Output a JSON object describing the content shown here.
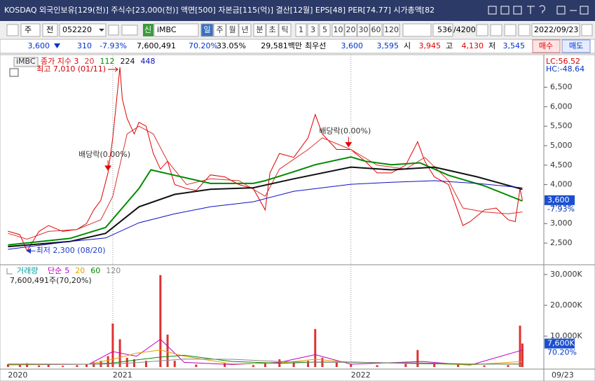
{
  "header": {
    "title": "KOSDAQ 외국인보유[129(천)] 주식수[23,000(천)] 액면[500] 자본금[115(억)] 결산[12월] EPS[48] PER[74.77] 시가총액[82"
  },
  "toolbar": {
    "market": "주",
    "scope": "전",
    "code": "052220",
    "badge": "신",
    "name": "iMBC",
    "periods": [
      "일",
      "주",
      "월",
      "년"
    ],
    "units": [
      "분",
      "초",
      "틱"
    ],
    "intervals": [
      "1",
      "3",
      "5",
      "10",
      "20",
      "30",
      "60",
      "120"
    ],
    "count": "536",
    "max_count": "/4200",
    "date": "2022/09/23"
  },
  "quote": {
    "price": "3,600",
    "change": "310",
    "change_rate": "-7.93%",
    "volume": "7,600,491",
    "volume_rate": "70.20%",
    "turnover": "33.05%",
    "amount": "29,581백만",
    "best_label": "최우선",
    "ask": "3,600",
    "bid": "3,595",
    "open_label": "시",
    "open": "3,945",
    "high_label": "고",
    "high": "4,130",
    "low_label": "저",
    "low": "3,545",
    "buy": "매수",
    "sell": "매도"
  },
  "chart_data": [
    {
      "type": "line",
      "legend_title": "iMBC",
      "lc_label": "LC:56.52",
      "hc_label": "HC:-48.64",
      "last": {
        "value": 3600,
        "label": "3,600"
      },
      "last_change": "-7.93%",
      "x": [
        2020.56,
        2020.61,
        2020.64,
        2020.69,
        2020.73,
        2020.79,
        2020.85,
        2020.89,
        2020.92,
        2020.95,
        2020.98,
        2021.0,
        2021.03,
        2021.04,
        2021.06,
        2021.09,
        2021.11,
        2021.14,
        2021.17,
        2021.2,
        2021.23,
        2021.26,
        2021.31,
        2021.35,
        2021.41,
        2021.47,
        2021.53,
        2021.59,
        2021.64,
        2021.66,
        2021.7,
        2021.76,
        2021.82,
        2021.85,
        2021.88,
        2021.94,
        2022.0,
        2022.06,
        2022.11,
        2022.17,
        2022.23,
        2022.28,
        2022.31,
        2022.35,
        2022.41,
        2022.45,
        2022.47,
        2022.5,
        2022.56,
        2022.61,
        2022.66,
        2022.69,
        2022.71,
        2022.72
      ],
      "series": [
        {
          "name": "종가 지수 3",
          "color": "#e00000",
          "values": [
            2805,
            2715,
            2300,
            2800,
            2950,
            2800,
            2850,
            3000,
            3350,
            3600,
            4300,
            5200,
            7010,
            6200,
            5700,
            5300,
            5600,
            5500,
            4800,
            4400,
            4600,
            4000,
            3900,
            3850,
            4250,
            4200,
            4000,
            3900,
            3350,
            4300,
            4800,
            4700,
            5200,
            5800,
            5300,
            4900,
            4900,
            4600,
            4300,
            4300,
            4500,
            5100,
            4600,
            4200,
            4000,
            3300,
            2950,
            3050,
            3350,
            3400,
            3100,
            3050,
            3900,
            3600
          ]
        },
        {
          "name": "20",
          "color": "#d83030",
          "x": [
            2020.56,
            2020.64,
            2020.73,
            2020.85,
            2020.95,
            2021.0,
            2021.06,
            2021.11,
            2021.17,
            2021.23,
            2021.31,
            2021.41,
            2021.53,
            2021.64,
            2021.7,
            2021.82,
            2021.88,
            2022.0,
            2022.11,
            2022.23,
            2022.31,
            2022.41,
            2022.47,
            2022.56,
            2022.66,
            2022.72
          ],
          "values": [
            2750,
            2600,
            2800,
            2850,
            3100,
            3700,
            5300,
            5500,
            5300,
            4600,
            4000,
            4150,
            4100,
            3700,
            4400,
            4900,
            5200,
            4900,
            4500,
            4400,
            4700,
            4100,
            3400,
            3300,
            3250,
            3300
          ]
        },
        {
          "name": "112",
          "color": "#008a00",
          "width": 2,
          "x": [
            2020.56,
            2020.82,
            2020.97,
            2021.11,
            2021.16,
            2021.26,
            2021.41,
            2021.59,
            2021.64,
            2021.76,
            2021.85,
            2022.0,
            2022.06,
            2022.17,
            2022.29,
            2022.41,
            2022.56,
            2022.72
          ],
          "values": [
            2450,
            2620,
            2900,
            3900,
            4380,
            4240,
            4030,
            4030,
            4100,
            4330,
            4510,
            4710,
            4600,
            4510,
            4560,
            4240,
            3970,
            3580
          ]
        },
        {
          "name": "224",
          "color": "#111111",
          "width": 2,
          "x": [
            2020.56,
            2020.82,
            2020.97,
            2021.11,
            2021.26,
            2021.41,
            2021.59,
            2021.76,
            2022.0,
            2022.17,
            2022.35,
            2022.53,
            2022.72
          ],
          "values": [
            2410,
            2540,
            2750,
            3430,
            3750,
            3880,
            3920,
            4150,
            4450,
            4380,
            4450,
            4200,
            3880
          ]
        },
        {
          "name": "448",
          "color": "#1010c0",
          "x": [
            2020.56,
            2020.82,
            2020.97,
            2021.11,
            2021.26,
            2021.41,
            2021.59,
            2021.76,
            2022.0,
            2022.17,
            2022.35,
            2022.53,
            2022.72
          ],
          "values": [
            2340,
            2540,
            2630,
            3020,
            3250,
            3430,
            3560,
            3830,
            4010,
            4060,
            4100,
            4030,
            3920
          ]
        }
      ],
      "annotations": [
        {
          "text": "최고 7,010 (01/11)",
          "x": 2021.03,
          "y": 7010,
          "style": "high"
        },
        {
          "text": "최저 2,300 (08/20)",
          "x": 2020.64,
          "y": 2300,
          "style": "low"
        },
        {
          "text": "배당락(0.00%)",
          "x": 2020.98,
          "y": 4300,
          "style": "event"
        },
        {
          "text": "배당락(0.00%)",
          "x": 2021.99,
          "y": 4900,
          "style": "event"
        }
      ],
      "xlim": [
        2020.55,
        2022.81
      ],
      "ylim": [
        1980,
        7300
      ],
      "xticks": [
        {
          "value": 2020.56,
          "label": "2020"
        },
        2021,
        2022
      ],
      "xgrid": true,
      "yticks": [
        {
          "value": 2500,
          "label": "2,500"
        },
        {
          "value": 3000,
          "label": "3,000"
        },
        {
          "value": 3500,
          "label": "3,500"
        },
        {
          "value": 4000,
          "label": "4,000"
        },
        {
          "value": 4500,
          "label": "4,500"
        },
        {
          "value": 5000,
          "label": "5,000"
        },
        {
          "value": 5500,
          "label": "5,500"
        },
        {
          "value": 6000,
          "label": "6,000"
        },
        {
          "value": 6500,
          "label": "6,500"
        }
      ],
      "last_date": "09/23"
    },
    {
      "type": "bar",
      "ma_prefix": "단순",
      "summary": "7,600,491주(70,20%)",
      "last": {
        "value": 7600,
        "label": "7,600K"
      },
      "last_rate": "70.20%",
      "x": [
        2020.56,
        2020.61,
        2020.64,
        2020.69,
        2020.73,
        2020.79,
        2020.85,
        2020.89,
        2020.92,
        2020.95,
        2020.98,
        2021.0,
        2021.03,
        2021.06,
        2021.09,
        2021.14,
        2021.2,
        2021.23,
        2021.26,
        2021.35,
        2021.47,
        2021.59,
        2021.64,
        2021.7,
        2021.76,
        2021.82,
        2021.85,
        2021.88,
        2021.94,
        2022.0,
        2022.11,
        2022.23,
        2022.28,
        2022.35,
        2022.45,
        2022.56,
        2022.66,
        2022.71,
        2022.72
      ],
      "series": [
        {
          "name": "거래량",
          "color": "#e03030",
          "values": [
            900,
            600,
            1200,
            500,
            700,
            400,
            600,
            800,
            1500,
            2000,
            3500,
            14100,
            9000,
            3000,
            2500,
            2000,
            29800,
            10500,
            2000,
            800,
            1200,
            600,
            1500,
            2500,
            1500,
            2000,
            12300,
            3000,
            1500,
            800,
            600,
            1000,
            5500,
            1200,
            900,
            500,
            600,
            13400,
            7600
          ]
        },
        {
          "name": "5",
          "type": "line",
          "color": "#c000c0",
          "x": [
            2020.56,
            2020.9,
            2021.0,
            2021.1,
            2021.2,
            2021.3,
            2021.5,
            2021.7,
            2021.85,
            2022.0,
            2022.3,
            2022.5,
            2022.72
          ],
          "values": [
            700,
            900,
            5000,
            3500,
            9000,
            1500,
            800,
            1500,
            4000,
            900,
            1800,
            600,
            5500
          ]
        },
        {
          "name": "20",
          "type": "line",
          "color": "#e0a000",
          "x": [
            2020.56,
            2020.9,
            2021.0,
            2021.1,
            2021.2,
            2021.3,
            2021.5,
            2021.7,
            2021.85,
            2022.0,
            2022.3,
            2022.5,
            2022.72
          ],
          "values": [
            800,
            900,
            2500,
            4500,
            5500,
            3500,
            1000,
            1300,
            2500,
            1500,
            1200,
            700,
            1800
          ]
        },
        {
          "name": "60",
          "type": "line",
          "color": "#008a00",
          "x": [
            2020.56,
            2020.9,
            2021.0,
            2021.1,
            2021.2,
            2021.3,
            2021.5,
            2021.7,
            2021.85,
            2022.0,
            2022.3,
            2022.5,
            2022.72
          ],
          "values": [
            900,
            900,
            1300,
            2300,
            3200,
            3800,
            1800,
            1200,
            1600,
            1600,
            1100,
            900,
            1000
          ]
        },
        {
          "name": "120",
          "type": "line",
          "color": "#888888",
          "x": [
            2020.56,
            2020.9,
            2021.0,
            2021.1,
            2021.2,
            2021.3,
            2021.5,
            2021.7,
            2021.85,
            2022.0,
            2022.3,
            2022.5,
            2022.72
          ],
          "values": [
            1000,
            900,
            1000,
            1400,
            2000,
            2600,
            2500,
            1800,
            1500,
            1500,
            1300,
            1000,
            900
          ]
        }
      ],
      "xlim": [
        2020.55,
        2022.81
      ],
      "ylim": [
        0,
        32700
      ],
      "yticks": [
        {
          "value": 10000,
          "label": "10,000K"
        },
        {
          "value": 20000,
          "label": "20,000K"
        },
        {
          "value": 30000,
          "label": "30,000K"
        }
      ]
    }
  ]
}
